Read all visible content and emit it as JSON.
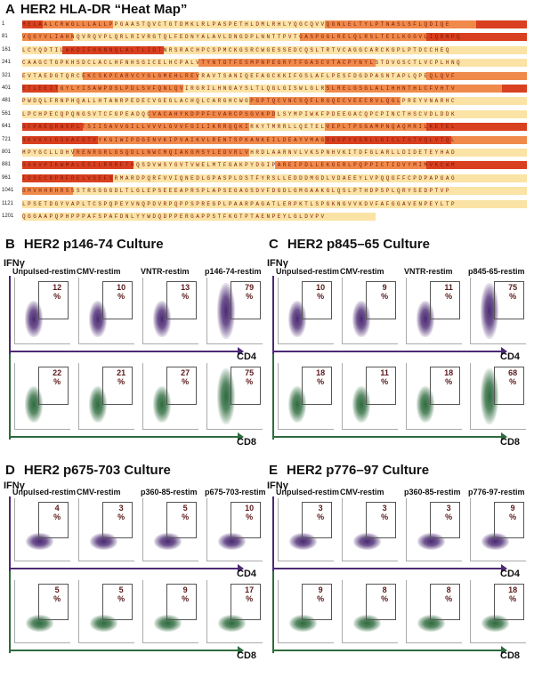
{
  "panel_a": {
    "letter": "A",
    "title": "HER2 HLA-DR “Heat Map”",
    "row_numbers": [
      "1",
      "81",
      "161",
      "241",
      "321",
      "401",
      "481",
      "561",
      "641",
      "721",
      "801",
      "881",
      "961",
      "1041",
      "1121",
      "1201"
    ],
    "row_sequences": [
      "MELAALCRWGLLLALLPPGAASTQVCTGTDMKLRLPASPETHLDMLRHLYQGCQVVQGNLELTYLPTNASLSFLQDIQE",
      "VQGYVLIAHNQVRQVPLQRLRIVRGTQLFEDNYALAVLDNGDPLNNTTPVTGASPGGLRELQLRSLTEILKGGVLIQRNPQ",
      "LCYQDTILWKDIFHKNNQLALTLIDTNRSRACHPCSPMCKGSRCWGESSEDCQSLTRTVCAGGCARCKGPLPTDCCHEQ",
      "CAAGCTGPKHSDCLACLHFNHSGICELHCPALVTYNTDTFESMPNPEGRYTFGASCVTACPYNYLSTDVGSCTLVCPLHNQ",
      "EVTAEDGTQRCEKCSKPCARVCYGLGMEHLREVRAVTSANIQEFAGCKKIFGSLAFLPESFDGDPASNTAPLQPEQLQVF",
      "ETLEEITGYLYISAWPDSLPDLSVFQNLQVIRGRILHNGAYSLTLQGLGISWLGLRSLRELGSGLALIHHNTHLCFVHTV",
      "PWDQLFRNPHQALLHTANRPEDECVGEGLACHQLCARGHCWGPGPTQCVNCSQFLRGQECVEECRVLQGLPREYVNARHC",
      "LPCHPECQPQNGSVTCFGPEADQCVACAHYKDPPFCVARCPSGVKPDLSYMPIWKFPDEEGACQPCPINCTHSCVDLDDK",
      "GCPAEQRASPLTSIISAVVGILLVVVLGVVFGILIKRRQQKIRKYTMRRLLQETELVEPLTPSGAMPNQAQMRILKETEL",
      "RKVKVLGSGAFGTVYKGIWIPDGENVKIPVAIKVLRENTSPKANKEILDEAYVMAGVGSPYVSRLLGICLTSTVQLVTQL",
      "MPYGCLLDHVRENRGRLGSQDLLNWCMQIAKGMSYLEDVRLVHRDLAARNVLVKSPNHVKITDFGLARLLDIDETEYHAD",
      "GGKVPIKWMALESILRRRFTHQSDVWSYGVTVWELMTFGAKPYDGIPAREIPDLLEKGERLPQPPICTIDVYMIMVKCWM",
      "IDSECRPRFRELVSEFSRMARDPQRFVVIQNEDLGPASPLDSTFYRSLLEDDDMGDLVDAEEYLVPQQGFFCPDPAPGAG",
      "GMVHHRHRSSSTRSGGGDLTLGLEPSEEEAPRSPLAPSEGAGSDVFDGDLGMGAAKGLQSLPTHDPSPLQRYSEDPTVP",
      "LPSETDGYVAPLTCSPQPEYVNQPDVRPQPPSPREGPLPAARPAGATLERPKTLSPGKNGVVKDVFAFGGAVENPEYLTP",
      "QGGAAPQPHPPPAFSPAFDNLYYWDQDPPERGAPPSTFKGTPTAENPEYLGLDVPV"
    ]
  },
  "panel_b": {
    "letter": "B",
    "title": "HER2 p146-74 Culture",
    "y_label": "IFNγ",
    "x_label_top": "CD4",
    "x_label_bottom": "CD8",
    "conditions": [
      "Unpulsed-restim",
      "CMV-restim",
      "VNTR-restim",
      "p146-74-restim"
    ],
    "cd4_pct": [
      "12",
      "10",
      "13",
      "79"
    ],
    "cd8_pct": [
      "22",
      "21",
      "27",
      "75"
    ],
    "pct_sign": "%"
  },
  "panel_c": {
    "letter": "C",
    "title": "HER2 p845–65 Culture",
    "y_label": "IFNγ",
    "x_label_top": "CD4",
    "x_label_bottom": "CD8",
    "conditions": [
      "Unpulsed-restim",
      "CMV-restim",
      "VNTR-restim",
      "p845-65-restim"
    ],
    "cd4_pct": [
      "10",
      "9",
      "11",
      "75"
    ],
    "cd8_pct": [
      "18",
      "11",
      "18",
      "68"
    ],
    "pct_sign": "%"
  },
  "panel_d": {
    "letter": "D",
    "title": "HER2 p675-703 Culture",
    "y_label": "IFNγ",
    "x_label_top": "CD4",
    "x_label_bottom": "CD8",
    "conditions": [
      "Unpulsed-restim",
      "CMV-restim",
      "p360-85-restim",
      "p675-703-restim"
    ],
    "cd4_pct": [
      "4",
      "3",
      "5",
      "10"
    ],
    "cd8_pct": [
      "5",
      "5",
      "9",
      "17"
    ],
    "pct_sign": "%"
  },
  "panel_e": {
    "letter": "E",
    "title": "HER2 p776–97 Culture",
    "y_label": "IFNγ",
    "x_label_top": "CD4",
    "x_label_bottom": "CD8",
    "conditions": [
      "Unpulsed-restim",
      "CMV-restim",
      "p360-85-restim",
      "p776-97-restim"
    ],
    "cd4_pct": [
      "3",
      "3",
      "3",
      "9"
    ],
    "cd8_pct": [
      "9",
      "8",
      "8",
      "18"
    ],
    "pct_sign": "%"
  },
  "colors": {
    "cd4": "#4b2a73",
    "cd8": "#2e6b3e",
    "heat_hot": "#d9401f",
    "heat_mid": "#f08a4b",
    "heat_low": "#fbe3a5"
  }
}
